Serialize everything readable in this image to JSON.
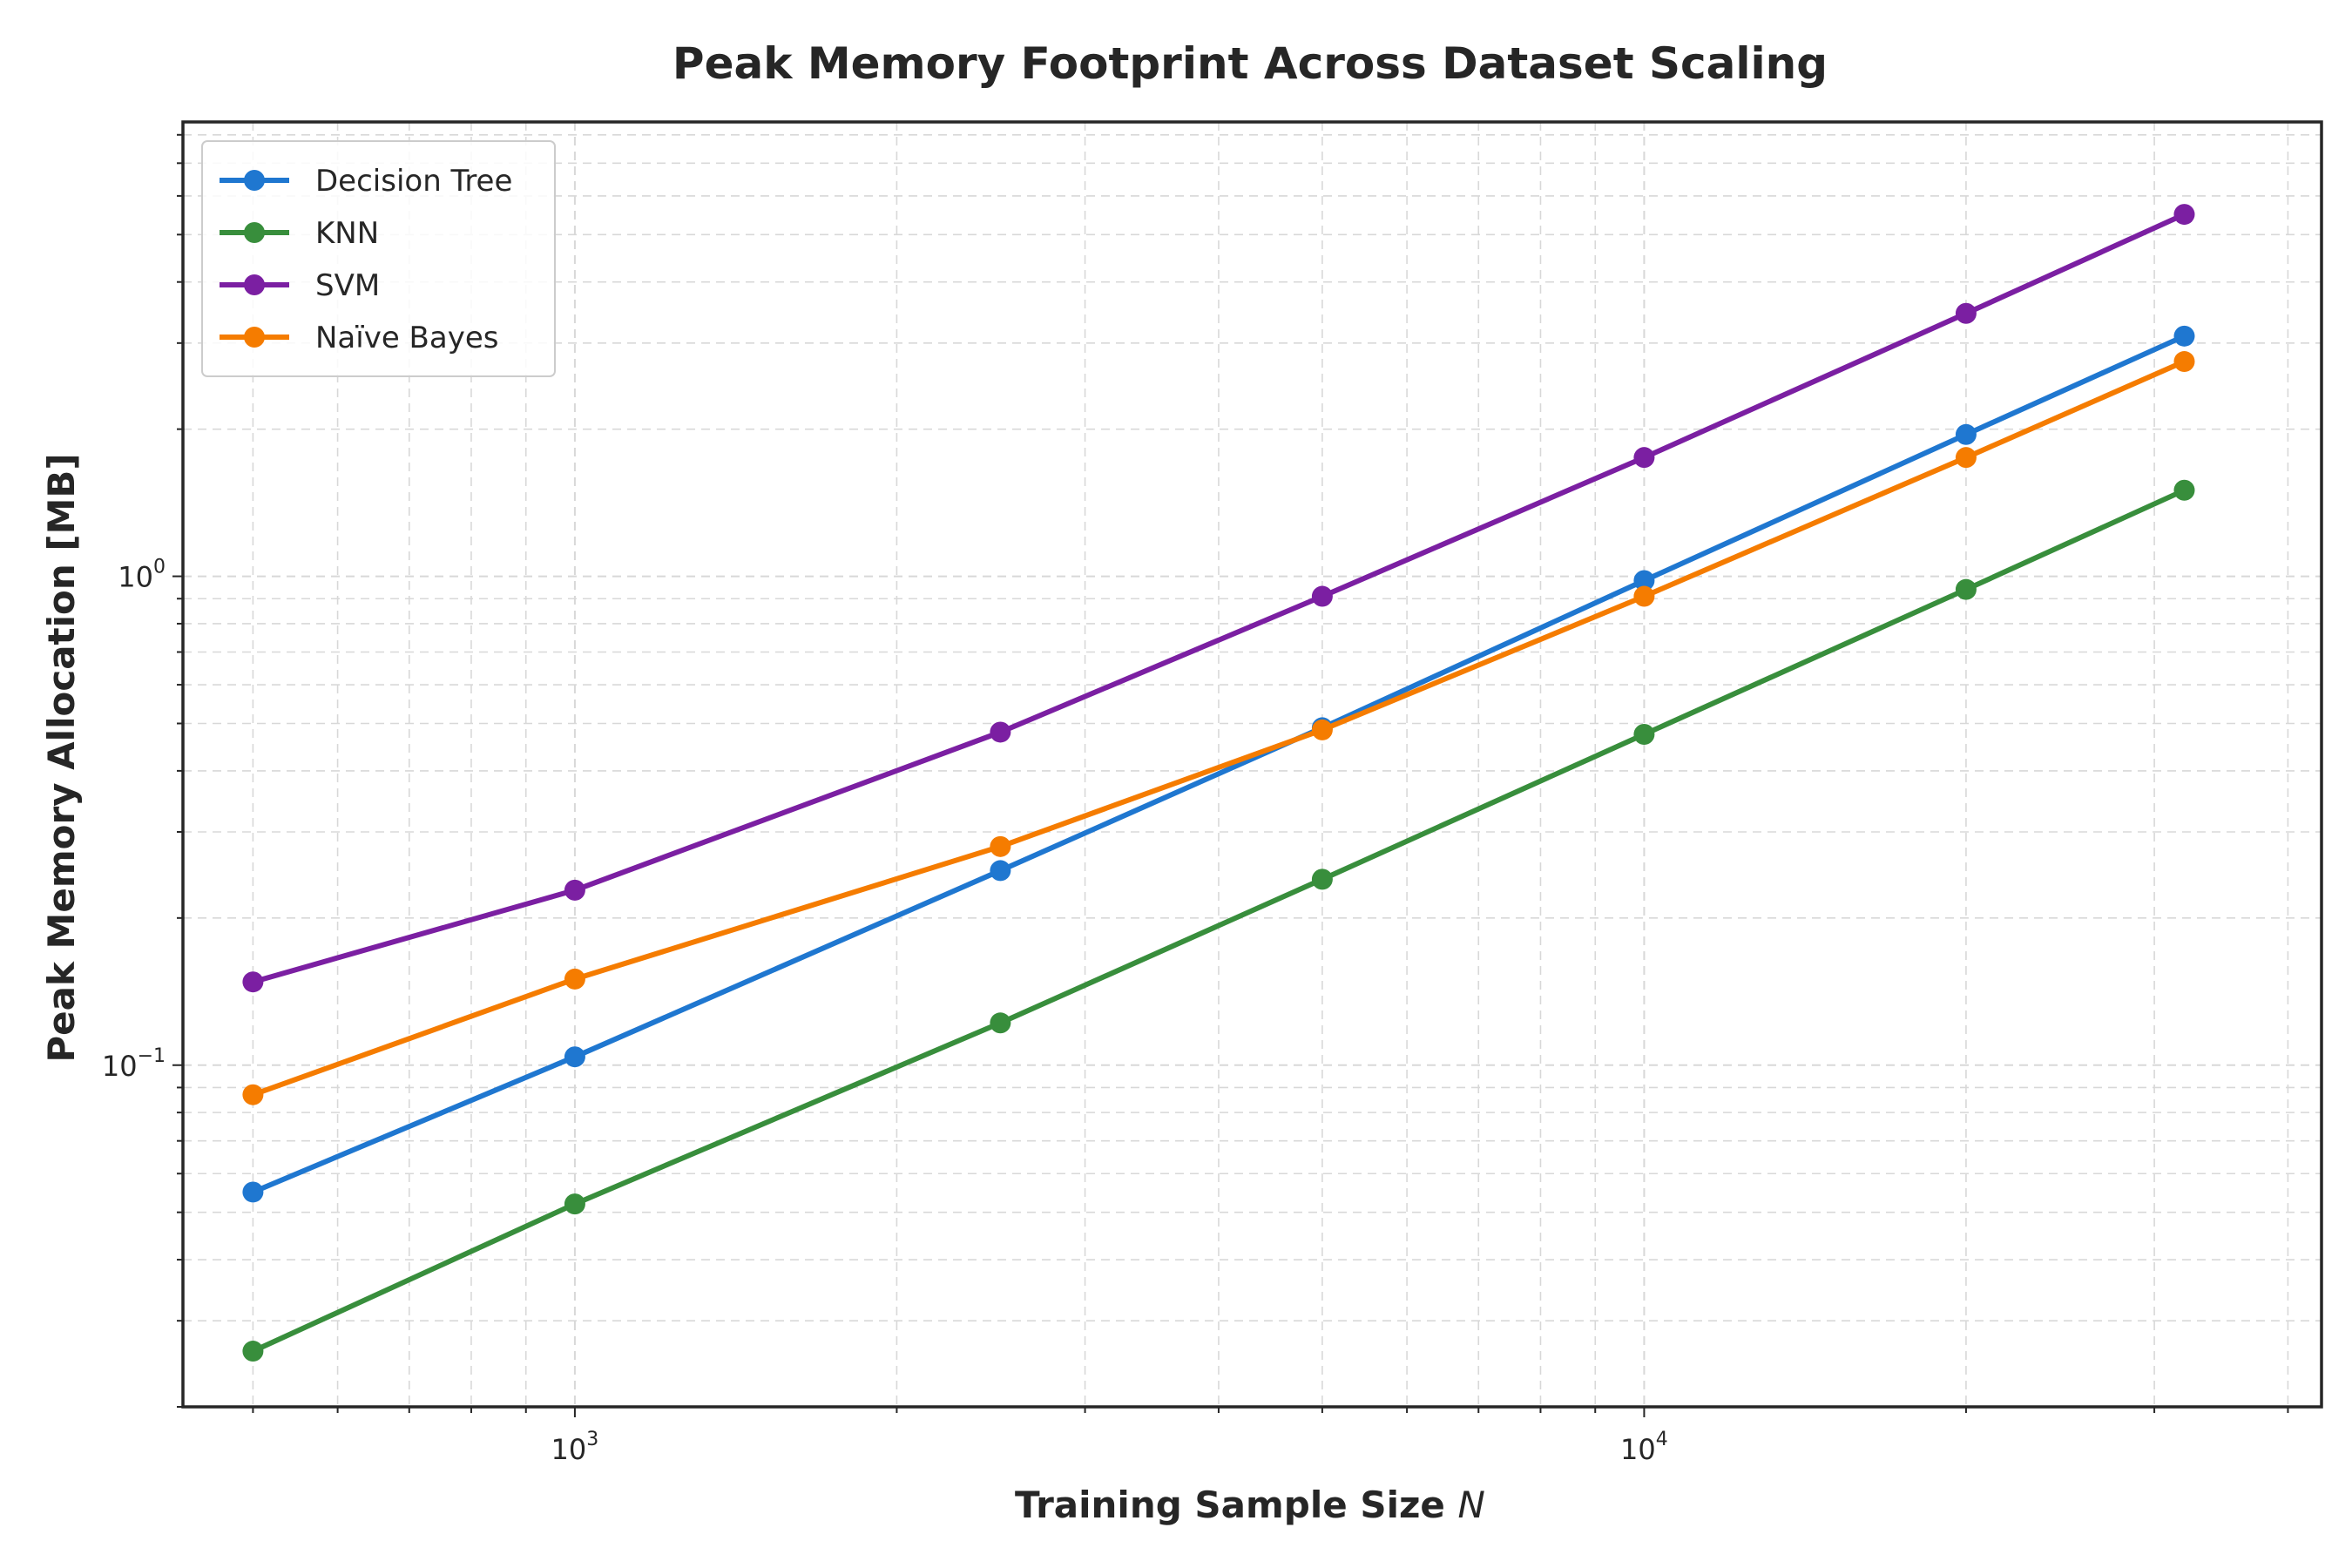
{
  "chart_data": {
    "type": "line",
    "title": "Peak Memory Footprint Across Dataset Scaling",
    "xlabel": "Training Sample Size",
    "xlabel_var": "N",
    "ylabel": "Peak Memory Allocation [MB]",
    "xscale": "log",
    "yscale": "log",
    "xlim": [
      430,
      43000
    ],
    "ylim": [
      0.02,
      8.5
    ],
    "x_ticks": [
      {
        "base": "10",
        "exp": "3"
      },
      {
        "base": "10",
        "exp": "4"
      }
    ],
    "y_ticks": [
      {
        "base": "10",
        "exp": "−1"
      },
      {
        "base": "10",
        "exp": "0"
      }
    ],
    "grid": true,
    "legend_position": "top-left",
    "x": [
      500,
      1000,
      2500,
      5000,
      10000,
      20000,
      32000
    ],
    "series": [
      {
        "name": "Decision Tree",
        "color": "#1f77d0",
        "values": [
          0.055,
          0.104,
          0.25,
          0.49,
          0.98,
          1.95,
          3.1
        ]
      },
      {
        "name": "KNN",
        "color": "#388e3c",
        "values": [
          0.026,
          0.052,
          0.122,
          0.24,
          0.475,
          0.94,
          1.5
        ]
      },
      {
        "name": "SVM",
        "color": "#7b1fa2",
        "values": [
          0.148,
          0.228,
          0.48,
          0.91,
          1.75,
          3.45,
          5.5
        ]
      },
      {
        "name": "Naïve Bayes",
        "color": "#f57c00",
        "values": [
          0.087,
          0.15,
          0.28,
          0.485,
          0.91,
          1.75,
          2.75
        ]
      }
    ]
  }
}
